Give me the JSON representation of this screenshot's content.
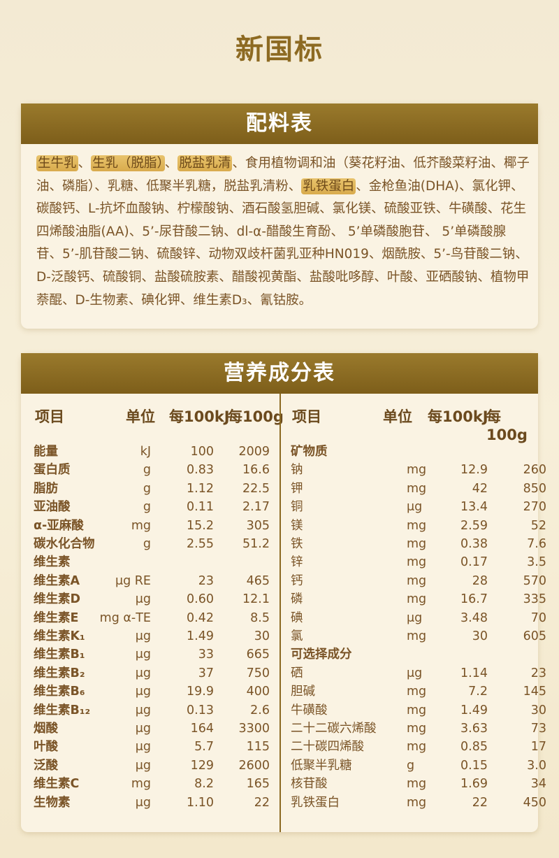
{
  "title": "新国标",
  "ingredients": {
    "title": "配料表",
    "lines": [
      [
        {
          "t": "生牛乳",
          "h": true
        },
        {
          "t": "、",
          "h": false
        },
        {
          "t": "生乳（脱脂）",
          "h": true
        },
        {
          "t": "、",
          "h": false
        },
        {
          "t": "脱盐乳清",
          "h": true
        },
        {
          "t": "、食用植物调和油（葵花籽油、低芥酸菜籽油、椰子",
          "h": false
        }
      ],
      [
        {
          "t": "油、磷脂）、乳糖、低聚半乳糖，脱盐乳清粉、",
          "h": false
        },
        {
          "t": "乳铁蛋白",
          "h": true
        },
        {
          "t": "、金枪鱼油(DHA)、氯化钾、",
          "h": false
        }
      ],
      [
        {
          "t": "碳酸钙、L-抗坏血酸钠、柠檬酸钠、酒石酸氢胆碱、氯化镁、硫酸亚铁、牛磺酸、花生",
          "h": false
        }
      ],
      [
        {
          "t": "四烯酸油脂(AA)、5’-尿苷酸二钠、dl-α-醋酸生育酚、 5’单磷酸胞苷、 5’单磷酸腺",
          "h": false
        }
      ],
      [
        {
          "t": "苷、5’-肌苷酸二钠、硫酸锌、动物双歧杆菌乳亚种HN019、烟酰胺、5’-鸟苷酸二钠、",
          "h": false
        }
      ],
      [
        {
          "t": "D-泛酸钙、硫酸铜、盐酸硫胺素、醋酸视黄酯、盐酸吡哆醇、叶酸、亚硒酸钠、植物甲",
          "h": false
        }
      ],
      [
        {
          "t": "萘醌、D-生物素、碘化钾、维生素D₃、氰钴胺。",
          "h": false
        }
      ]
    ]
  },
  "nutrition": {
    "title": "营养成分表",
    "headers": [
      "项目",
      "单位",
      "每100kJ",
      "每100g"
    ],
    "left": [
      [
        "能量",
        "kJ",
        "100",
        "2009"
      ],
      [
        "蛋白质",
        "g",
        "0.83",
        "16.6"
      ],
      [
        "脂肪",
        "g",
        "1.12",
        "22.5"
      ],
      [
        "亚油酸",
        "g",
        "0.11",
        "2.17"
      ],
      [
        "α-亚麻酸",
        "mg",
        "15.2",
        "305"
      ],
      [
        "碳水化合物",
        "g",
        "2.55",
        "51.2"
      ],
      [
        "维生素",
        "",
        "",
        ""
      ],
      [
        "维生素A",
        "μg RE",
        "23",
        "465"
      ],
      [
        "维生素D",
        "μg",
        "0.60",
        "12.1"
      ],
      [
        "维生素E",
        "mg α-TE",
        "0.42",
        "8.5"
      ],
      [
        "维生素K₁",
        "μg",
        "1.49",
        "30"
      ],
      [
        "维生素B₁",
        "μg",
        "33",
        "665"
      ],
      [
        "维生素B₂",
        "μg",
        "37",
        "750"
      ],
      [
        "维生素B₆",
        "μg",
        "19.9",
        "400"
      ],
      [
        "维生素B₁₂",
        "μg",
        "0.13",
        "2.6"
      ],
      [
        "烟酸",
        "μg",
        "164",
        "3300"
      ],
      [
        "叶酸",
        "μg",
        "5.7",
        "115"
      ],
      [
        "泛酸",
        "μg",
        "129",
        "2600"
      ],
      [
        "维生素C",
        "mg",
        "8.2",
        "165"
      ],
      [
        "生物素",
        "μg",
        "1.10",
        "22"
      ]
    ],
    "right": [
      [
        "矿物质",
        "",
        "",
        ""
      ],
      [
        "钠",
        "mg",
        "12.9",
        "260"
      ],
      [
        "钾",
        "mg",
        "42",
        "850"
      ],
      [
        "铜",
        "μg",
        "13.4",
        "270"
      ],
      [
        "镁",
        "mg",
        "2.59",
        "52"
      ],
      [
        "铁",
        "mg",
        "0.38",
        "7.6"
      ],
      [
        "锌",
        "mg",
        "0.17",
        "3.5"
      ],
      [
        "钙",
        "mg",
        "28",
        "570"
      ],
      [
        "磷",
        "mg",
        "16.7",
        "335"
      ],
      [
        "碘",
        "μg",
        "3.48",
        "70"
      ],
      [
        "氯",
        "mg",
        "30",
        "605"
      ],
      [
        "可选择成分",
        "",
        "",
        ""
      ],
      [
        "硒",
        "μg",
        "1.14",
        "23"
      ],
      [
        "胆碱",
        "mg",
        "7.2",
        "145"
      ],
      [
        "牛磺酸",
        "mg",
        "1.49",
        "30"
      ],
      [
        "二十二碳六烯酸",
        "mg",
        "3.63",
        "73"
      ],
      [
        "二十碳四烯酸",
        "mg",
        "0.85",
        "17"
      ],
      [
        "低聚半乳糖",
        "g",
        "0.15",
        "3.0"
      ],
      [
        "核苷酸",
        "mg",
        "1.69",
        "34"
      ],
      [
        "乳铁蛋白",
        "mg",
        "22",
        "450"
      ]
    ]
  }
}
